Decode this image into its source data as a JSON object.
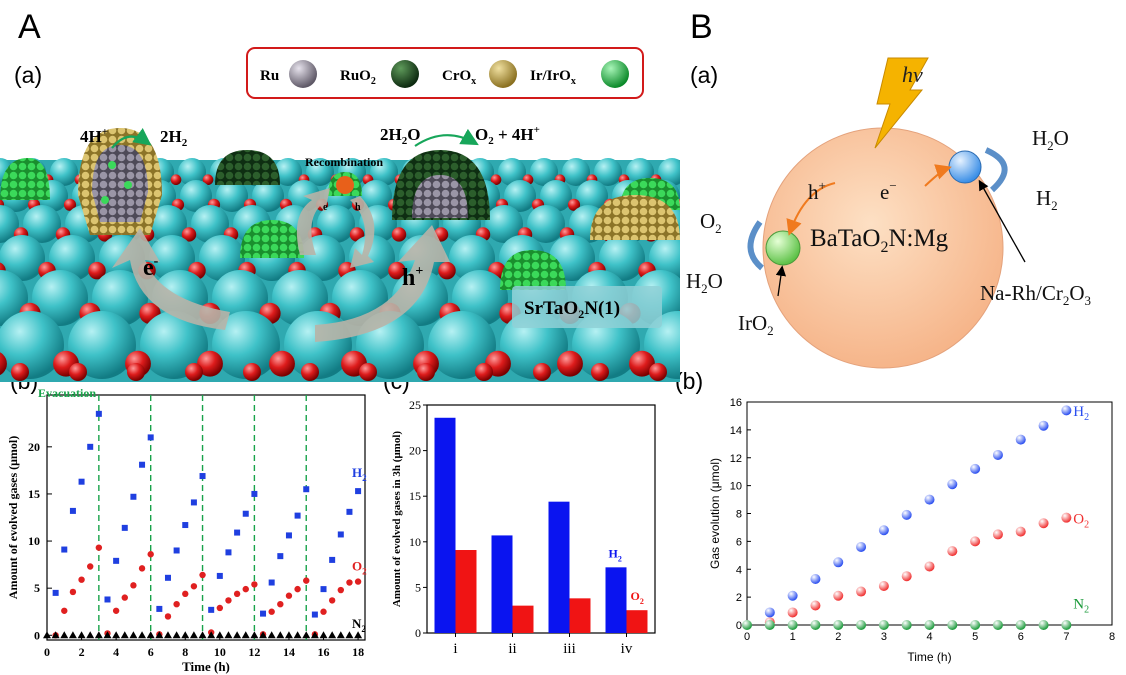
{
  "panel_labels": {
    "A": "A",
    "B": "B",
    "Aa": "(a)",
    "Ab": "(b)",
    "Ac": "(c)",
    "Ba": "(a)",
    "Bb": "(b)"
  },
  "schematic_A": {
    "legend": [
      {
        "text": "Ru",
        "color": "#8e8a96"
      },
      {
        "text": "RuO",
        "sub": "2",
        "color": "#1f4a22"
      },
      {
        "text": "CrO",
        "sub": "x",
        "color": "#b8a048"
      },
      {
        "text": "Ir/IrO",
        "sub": "x",
        "color": "#22c04a"
      }
    ],
    "reaction_left_in": "4H",
    "reaction_left_in_sup": "+",
    "reaction_left_out": "2H",
    "reaction_left_out_sub": "2",
    "reaction_right_in": "2H",
    "reaction_right_in_sub": "2",
    "reaction_right_in_tail": "O",
    "reaction_right_out": "O",
    "reaction_right_out_sub": "2",
    "reaction_right_out_tail": " + 4H",
    "reaction_right_out_sup": "+",
    "recombination": "Recombination",
    "electron": "e",
    "electron_sup": "-",
    "hole": "h",
    "hole_sup": "+",
    "small_e": "e",
    "small_h": "h",
    "material": "SrTaO",
    "material_sub": "2",
    "material_tail": "N(1)"
  },
  "schematic_B": {
    "hv": "hv",
    "h2o_top": "H",
    "h2o_top_sub": "2",
    "h2o_top_tail": "O",
    "h2_right": "H",
    "h2_right_sub": "2",
    "o2_left": "O",
    "o2_left_sub": "2",
    "h2o_left": "H",
    "h2o_left_sub": "2",
    "h2o_left_tail": "O",
    "hole": "h",
    "hole_sup": "+",
    "electron": "e",
    "electron_sup": "−",
    "material": "BaTaO",
    "material_sub": "2",
    "material_tail": "N:Mg",
    "cocat_left": "IrO",
    "cocat_left_sub": "2",
    "cocat_right": "Na-Rh/Cr",
    "cocat_right_sub1": "2",
    "cocat_right_mid": "O",
    "cocat_right_sub2": "3"
  },
  "chart_data": [
    {
      "id": "A_b",
      "type": "scatter",
      "annotation": "Evacuation",
      "xlabel": "Time (h)",
      "ylabel": "Amount of evolved gases (μmol)",
      "xlim": [
        0,
        18.4
      ],
      "ylim": [
        -0.5,
        25.5
      ],
      "xticks": [
        0,
        2,
        4,
        6,
        8,
        10,
        12,
        14,
        16,
        18
      ],
      "yticks": [
        0,
        5,
        10,
        15,
        20
      ],
      "evacuation_x": [
        3,
        6,
        9,
        12,
        15
      ],
      "series": [
        {
          "name": "H",
          "name_sub": "2",
          "color": "#1f3fe0",
          "marker": "square",
          "x": [
            0.5,
            1,
            1.5,
            2,
            2.5,
            3,
            3.5,
            4,
            4.5,
            5,
            5.5,
            6,
            6.5,
            7,
            7.5,
            8,
            8.5,
            9,
            9.5,
            10,
            10.5,
            11,
            11.5,
            12,
            12.5,
            13,
            13.5,
            14,
            14.5,
            15,
            15.5,
            16,
            16.5,
            17,
            17.5,
            18
          ],
          "y": [
            4.5,
            9.1,
            13.2,
            16.3,
            20,
            23.5,
            3.8,
            7.9,
            11.4,
            14.7,
            18.1,
            21,
            2.8,
            6.1,
            9,
            11.7,
            14.1,
            16.9,
            2.7,
            6.3,
            8.8,
            10.9,
            12.9,
            15,
            2.3,
            5.6,
            8.4,
            10.6,
            12.7,
            15.5,
            2.2,
            4.9,
            8,
            10.7,
            13.1,
            15.3
          ]
        },
        {
          "name": "O",
          "name_sub": "2",
          "color": "#e02020",
          "marker": "circle",
          "x": [
            0.5,
            1,
            1.5,
            2,
            2.5,
            3,
            3.5,
            4,
            4.5,
            5,
            5.5,
            6,
            6.5,
            7,
            7.5,
            8,
            8.5,
            9,
            9.5,
            10,
            10.5,
            11,
            11.5,
            12,
            12.5,
            13,
            13.5,
            14,
            14.5,
            15,
            15.5,
            16,
            16.5,
            17,
            17.5,
            18
          ],
          "y": [
            0,
            2.6,
            4.6,
            5.9,
            7.3,
            9.3,
            0.2,
            2.6,
            4,
            5.3,
            7.1,
            8.6,
            0.1,
            2,
            3.3,
            4.4,
            5.2,
            6.4,
            0.3,
            2.9,
            3.7,
            4.4,
            4.9,
            5.4,
            0.1,
            2.5,
            3.3,
            4.2,
            4.9,
            5.8,
            0.1,
            2.5,
            3.7,
            4.8,
            5.6,
            5.7
          ]
        },
        {
          "name": "N",
          "name_sub": "2",
          "color": "#000000",
          "marker": "triangle",
          "x": [
            0,
            0.5,
            1,
            1.5,
            2,
            2.5,
            3,
            3.5,
            4,
            4.5,
            5,
            5.5,
            6,
            6.5,
            7,
            7.5,
            8,
            8.5,
            9,
            9.5,
            10,
            10.5,
            11,
            11.5,
            12,
            12.5,
            13,
            13.5,
            14,
            14.5,
            15,
            15.5,
            16,
            16.5,
            17,
            17.5,
            18
          ],
          "y": [
            0,
            0,
            0,
            0,
            0,
            0,
            0,
            0,
            0,
            0,
            0,
            0,
            0,
            0,
            0,
            0,
            0,
            0,
            0,
            0,
            0,
            0,
            0,
            0,
            0,
            0,
            0,
            0,
            0,
            0,
            0,
            0,
            0,
            0,
            0,
            0,
            0
          ]
        }
      ]
    },
    {
      "id": "A_c",
      "type": "bar",
      "ylabel": "Amount of evolved gases in 3h (μmol)",
      "categories": [
        "i",
        "ii",
        "iii",
        "iv"
      ],
      "ylim": [
        0,
        25
      ],
      "yticks": [
        0,
        5,
        10,
        15,
        20,
        25
      ],
      "series": [
        {
          "name": "H",
          "name_sub": "2",
          "color": "#0a14f0",
          "values": [
            23.6,
            10.7,
            14.4,
            7.2
          ]
        },
        {
          "name": "O",
          "name_sub": "2",
          "color": "#f01414",
          "values": [
            9.1,
            3.0,
            3.8,
            2.5
          ]
        }
      ]
    },
    {
      "id": "B_b",
      "type": "scatter",
      "xlabel": "Time (h)",
      "ylabel": "Gas evolution (μmol)",
      "xlim": [
        0,
        8
      ],
      "ylim": [
        0,
        16
      ],
      "xticks": [
        0,
        1,
        2,
        3,
        4,
        5,
        6,
        7,
        8
      ],
      "yticks": [
        0,
        2,
        4,
        6,
        8,
        10,
        12,
        14,
        16
      ],
      "series": [
        {
          "name": "H",
          "name_sub": "2",
          "color": "#2a4ef0",
          "x": [
            0.5,
            1,
            1.5,
            2,
            2.5,
            3,
            3.5,
            4,
            4.5,
            5,
            5.5,
            6,
            6.5,
            7
          ],
          "y": [
            0.9,
            2.1,
            3.3,
            4.5,
            5.6,
            6.8,
            7.9,
            9,
            10.1,
            11.2,
            12.2,
            13.3,
            14.3,
            15.4
          ]
        },
        {
          "name": "O",
          "name_sub": "2",
          "color": "#f03030",
          "x": [
            0.5,
            1,
            1.5,
            2,
            2.5,
            3,
            3.5,
            4,
            4.5,
            5,
            5.5,
            6,
            6.5,
            7
          ],
          "y": [
            0.2,
            0.9,
            1.4,
            2.1,
            2.4,
            2.8,
            3.5,
            4.2,
            5.3,
            6,
            6.5,
            6.7,
            7.3,
            7.7
          ]
        },
        {
          "name": "N",
          "name_sub": "2",
          "color": "#1a9a3a",
          "x": [
            0,
            0.5,
            1,
            1.5,
            2,
            2.5,
            3,
            3.5,
            4,
            4.5,
            5,
            5.5,
            6,
            6.5,
            7
          ],
          "y": [
            0,
            0,
            0,
            0,
            0,
            0,
            0,
            0,
            0,
            0,
            0,
            0,
            0,
            0,
            0
          ]
        }
      ]
    }
  ]
}
